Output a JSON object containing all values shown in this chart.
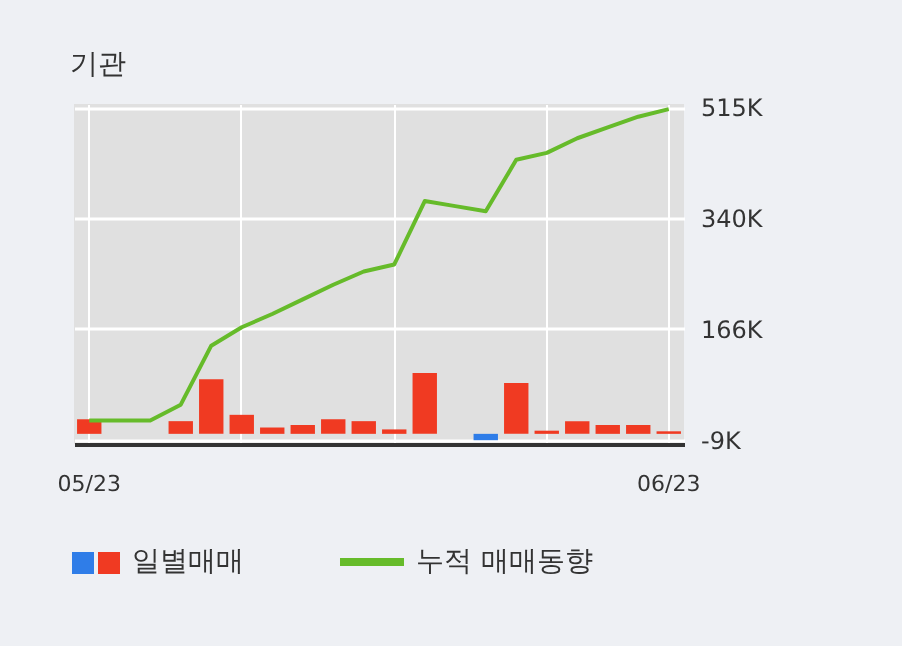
{
  "chart_data": {
    "type": "bar",
    "title": "기관",
    "categories": [
      "05/23",
      null,
      null,
      null,
      null,
      null,
      null,
      null,
      null,
      null,
      null,
      null,
      null,
      null,
      null,
      null,
      null,
      null,
      null,
      "06/23"
    ],
    "series": [
      {
        "name": "일별매매",
        "values": [
          23,
          null,
          null,
          20,
          86,
          30,
          10,
          14,
          23,
          20,
          7,
          96,
          null,
          -10,
          80,
          5,
          20,
          14,
          14,
          4
        ],
        "colors": [
          "#f03a22",
          null,
          null,
          "#f03a22",
          "#f03a22",
          "#f03a22",
          "#f03a22",
          "#f03a22",
          "#f03a22",
          "#f03a22",
          "#f03a22",
          "#f03a22",
          null,
          "#2f7de8",
          "#f03a22",
          "#f03a22",
          "#f03a22",
          "#f03a22",
          "#f03a22",
          "#f03a22"
        ]
      },
      {
        "name": "누적 매매동향",
        "type": "line",
        "color": "#66bb2a",
        "values": [
          21,
          21,
          21,
          46,
          139,
          168,
          189,
          212,
          235,
          256,
          267,
          367,
          359,
          351,
          432,
          443,
          466,
          483,
          500,
          512
        ]
      }
    ],
    "ylim": [
      -16,
      520
    ],
    "yticks": [
      {
        "value": -9,
        "label": "-9K"
      },
      {
        "value": 166,
        "label": "166K"
      },
      {
        "value": 340,
        "label": "340K"
      },
      {
        "value": 515,
        "label": "515K"
      }
    ],
    "grid": true,
    "legend": "bottom"
  }
}
